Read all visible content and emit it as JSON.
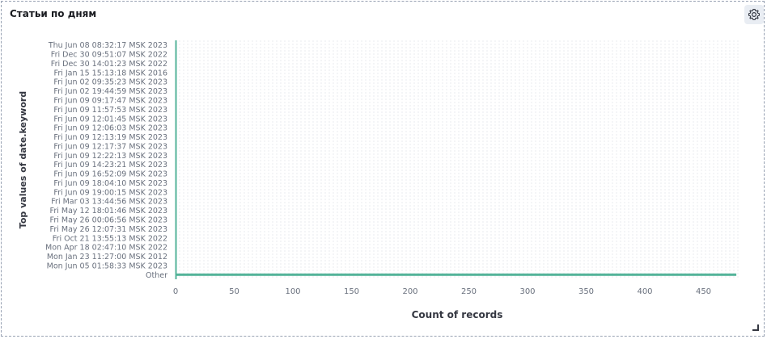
{
  "panel": {
    "title": "Статьи по дням",
    "settings_icon": "gear-icon"
  },
  "chart_data": {
    "type": "bar",
    "orientation": "horizontal",
    "ylabel": "Top values of date.keyword",
    "xlabel": "Count of records",
    "categories": [
      "Thu Jun 08 08:32:17 MSK 2023",
      "Fri Dec 30 09:51:07 MSK 2022",
      "Fri Dec 30 14:01:23 MSK 2022",
      "Fri Jan 15 15:13:18 MSK 2016",
      "Fri Jun 02 09:35:23 MSK 2023",
      "Fri Jun 02 19:44:59 MSK 2023",
      "Fri Jun 09 09:17:47 MSK 2023",
      "Fri Jun 09 11:57:53 MSK 2023",
      "Fri Jun 09 12:01:45 MSK 2023",
      "Fri Jun 09 12:06:03 MSK 2023",
      "Fri Jun 09 12:13:19 MSK 2023",
      "Fri Jun 09 12:17:37 MSK 2023",
      "Fri Jun 09 12:22:13 MSK 2023",
      "Fri Jun 09 14:23:21 MSK 2023",
      "Fri Jun 09 16:52:09 MSK 2023",
      "Fri Jun 09 18:04:10 MSK 2023",
      "Fri Jun 09 19:00:15 MSK 2023",
      "Fri Mar 03 13:44:56 MSK 2023",
      "Fri May 12 18:01:46 MSK 2023",
      "Fri May 26 00:06:56 MSK 2023",
      "Fri May 26 12:07:31 MSK 2023",
      "Fri Oct 21 13:55:13 MSK 2022",
      "Mon Apr 18 02:47:10 MSK 2022",
      "Mon Jan 23 11:27:00 MSK 2012",
      "Mon Jun 05 01:58:33 MSK 2023",
      "Other"
    ],
    "values": [
      1,
      1,
      1,
      1,
      1,
      1,
      1,
      1,
      1,
      1,
      1,
      1,
      1,
      1,
      1,
      1,
      1,
      1,
      1,
      1,
      1,
      1,
      1,
      1,
      1,
      478
    ],
    "xlim": [
      0,
      480
    ],
    "xticks": [
      0,
      50,
      100,
      150,
      200,
      250,
      300,
      350,
      400,
      450
    ],
    "grid": true,
    "bar_color": "#54b399"
  }
}
